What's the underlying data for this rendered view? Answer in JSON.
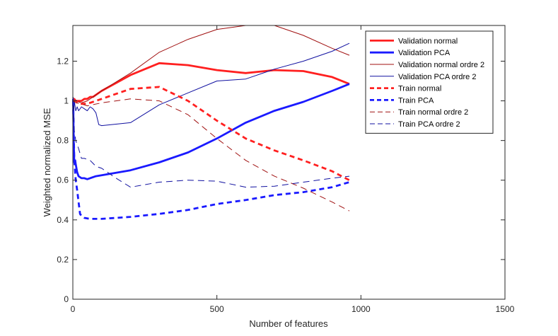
{
  "chart_data": {
    "type": "line",
    "xlabel": "Number of features",
    "ylabel": "Weighted normalized MSE",
    "xlim": [
      0,
      1500
    ],
    "ylim": [
      0,
      1.38
    ],
    "xticks": [
      0,
      500,
      1000,
      1500
    ],
    "yticks": [
      0,
      0.2,
      0.4,
      0.6,
      0.8,
      1,
      1.2
    ],
    "xtick_labels": [
      "0",
      "500",
      "1000",
      "1500"
    ],
    "ytick_labels": [
      "0",
      "0.2",
      "0.4",
      "0.6",
      "0.8",
      "1",
      "1.2"
    ],
    "grid": false,
    "legend_position": "top-right",
    "series": [
      {
        "name": "Validation normal",
        "color": "#ff2020",
        "style": "solid-thick",
        "points": [
          [
            1,
            1.0
          ],
          [
            5,
            1.01
          ],
          [
            10,
            1.0
          ],
          [
            20,
            1.0
          ],
          [
            30,
            1.0
          ],
          [
            40,
            1.01
          ],
          [
            50,
            1.01
          ],
          [
            60,
            1.02
          ],
          [
            70,
            1.02
          ],
          [
            100,
            1.05
          ],
          [
            200,
            1.13
          ],
          [
            300,
            1.19
          ],
          [
            400,
            1.18
          ],
          [
            500,
            1.155
          ],
          [
            600,
            1.14
          ],
          [
            700,
            1.155
          ],
          [
            800,
            1.15
          ],
          [
            900,
            1.12
          ],
          [
            960,
            1.085
          ]
        ]
      },
      {
        "name": "Validation PCA",
        "color": "#1a1aff",
        "style": "solid-thick",
        "points": [
          [
            1,
            1.01
          ],
          [
            3,
            0.8
          ],
          [
            5,
            0.69
          ],
          [
            8,
            0.7
          ],
          [
            10,
            0.68
          ],
          [
            15,
            0.64
          ],
          [
            20,
            0.62
          ],
          [
            30,
            0.61
          ],
          [
            40,
            0.61
          ],
          [
            50,
            0.605
          ],
          [
            60,
            0.61
          ],
          [
            80,
            0.62
          ],
          [
            100,
            0.625
          ],
          [
            200,
            0.65
          ],
          [
            300,
            0.69
          ],
          [
            400,
            0.74
          ],
          [
            500,
            0.81
          ],
          [
            600,
            0.89
          ],
          [
            700,
            0.95
          ],
          [
            800,
            0.995
          ],
          [
            900,
            1.05
          ],
          [
            960,
            1.085
          ]
        ]
      },
      {
        "name": "Validation normal ordre 2",
        "color": "#a01010",
        "style": "solid-thin",
        "points": [
          [
            1,
            1.0
          ],
          [
            10,
            1.0
          ],
          [
            30,
            0.99
          ],
          [
            50,
            1.0
          ],
          [
            100,
            1.05
          ],
          [
            200,
            1.14
          ],
          [
            300,
            1.245
          ],
          [
            400,
            1.31
          ],
          [
            500,
            1.36
          ],
          [
            600,
            1.38
          ],
          [
            700,
            1.38
          ],
          [
            800,
            1.33
          ],
          [
            900,
            1.265
          ],
          [
            960,
            1.23
          ]
        ]
      },
      {
        "name": "Validation PCA ordre 2",
        "color": "#1010a0",
        "style": "solid-thin",
        "points": [
          [
            1,
            1.02
          ],
          [
            3,
            0.93
          ],
          [
            5,
            1.0
          ],
          [
            10,
            0.95
          ],
          [
            15,
            0.97
          ],
          [
            20,
            0.95
          ],
          [
            25,
            0.96
          ],
          [
            30,
            0.97
          ],
          [
            40,
            0.96
          ],
          [
            50,
            0.95
          ],
          [
            60,
            0.97
          ],
          [
            70,
            0.96
          ],
          [
            80,
            0.94
          ],
          [
            90,
            0.88
          ],
          [
            100,
            0.875
          ],
          [
            200,
            0.89
          ],
          [
            300,
            0.98
          ],
          [
            400,
            1.04
          ],
          [
            500,
            1.1
          ],
          [
            600,
            1.11
          ],
          [
            700,
            1.16
          ],
          [
            800,
            1.2
          ],
          [
            900,
            1.25
          ],
          [
            960,
            1.29
          ]
        ]
      },
      {
        "name": "Train normal",
        "color": "#ff2020",
        "style": "dashed-thick",
        "points": [
          [
            1,
            1.0
          ],
          [
            10,
            1.0
          ],
          [
            20,
            0.99
          ],
          [
            30,
            0.985
          ],
          [
            40,
            0.985
          ],
          [
            50,
            0.99
          ],
          [
            60,
            0.99
          ],
          [
            80,
            1.0
          ],
          [
            100,
            1.01
          ],
          [
            200,
            1.06
          ],
          [
            300,
            1.07
          ],
          [
            400,
            1.0
          ],
          [
            500,
            0.9
          ],
          [
            600,
            0.81
          ],
          [
            700,
            0.75
          ],
          [
            800,
            0.7
          ],
          [
            900,
            0.645
          ],
          [
            960,
            0.6
          ]
        ]
      },
      {
        "name": "Train PCA",
        "color": "#1a1aff",
        "style": "dashed-thick",
        "points": [
          [
            1,
            1.0
          ],
          [
            3,
            0.85
          ],
          [
            5,
            0.7
          ],
          [
            10,
            0.6
          ],
          [
            15,
            0.55
          ],
          [
            20,
            0.49
          ],
          [
            25,
            0.43
          ],
          [
            30,
            0.42
          ],
          [
            40,
            0.41
          ],
          [
            60,
            0.405
          ],
          [
            100,
            0.405
          ],
          [
            200,
            0.415
          ],
          [
            300,
            0.43
          ],
          [
            400,
            0.45
          ],
          [
            500,
            0.48
          ],
          [
            600,
            0.5
          ],
          [
            700,
            0.525
          ],
          [
            800,
            0.54
          ],
          [
            900,
            0.565
          ],
          [
            960,
            0.59
          ]
        ]
      },
      {
        "name": "Train normal ordre 2",
        "color": "#a01010",
        "style": "dashed-thin",
        "points": [
          [
            1,
            1.0
          ],
          [
            10,
            0.99
          ],
          [
            30,
            0.985
          ],
          [
            50,
            0.975
          ],
          [
            100,
            0.99
          ],
          [
            200,
            1.01
          ],
          [
            300,
            1.0
          ],
          [
            400,
            0.93
          ],
          [
            500,
            0.81
          ],
          [
            600,
            0.7
          ],
          [
            700,
            0.62
          ],
          [
            800,
            0.56
          ],
          [
            900,
            0.49
          ],
          [
            960,
            0.445
          ]
        ]
      },
      {
        "name": "Train PCA ordre 2",
        "color": "#1010a0",
        "style": "dashed-thin",
        "points": [
          [
            1,
            0.98
          ],
          [
            5,
            0.85
          ],
          [
            10,
            0.8
          ],
          [
            20,
            0.76
          ],
          [
            30,
            0.71
          ],
          [
            40,
            0.71
          ],
          [
            60,
            0.7
          ],
          [
            80,
            0.67
          ],
          [
            100,
            0.66
          ],
          [
            150,
            0.61
          ],
          [
            200,
            0.565
          ],
          [
            300,
            0.59
          ],
          [
            400,
            0.6
          ],
          [
            500,
            0.595
          ],
          [
            600,
            0.565
          ],
          [
            700,
            0.57
          ],
          [
            800,
            0.59
          ],
          [
            900,
            0.61
          ],
          [
            960,
            0.62
          ]
        ]
      }
    ]
  }
}
